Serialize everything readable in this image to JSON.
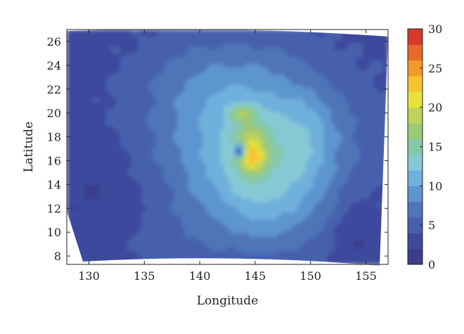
{
  "chart_data": {
    "type": "heatmap",
    "subtype": "filled-contour",
    "title": "",
    "xlabel": "Longitude",
    "ylabel": "Latitude",
    "xlim": [
      128,
      157
    ],
    "ylim": [
      7.3,
      27
    ],
    "x_ticks": [
      130,
      135,
      140,
      145,
      150,
      155
    ],
    "y_ticks": [
      8,
      10,
      12,
      14,
      16,
      18,
      20,
      22,
      24,
      26
    ],
    "colorbar": {
      "range": [
        0,
        30
      ],
      "ticks": [
        0,
        5,
        10,
        15,
        20,
        25,
        30
      ],
      "levels": [
        0,
        2,
        4,
        6,
        8,
        10,
        12,
        14,
        16,
        18,
        20,
        22,
        24,
        26,
        28,
        30
      ],
      "colors": [
        "#3a3e8c",
        "#3d4a9c",
        "#4660ad",
        "#4f74b8",
        "#5d95cf",
        "#6fb0dd",
        "#86c9d4",
        "#86c9a8",
        "#9ccb76",
        "#bfd25a",
        "#e6e23a",
        "#f5c430",
        "#f39b2a",
        "#e86a28",
        "#d63a2a"
      ]
    },
    "domain_edge": "curved map-projection boundary (wider at the bottom, narrower at the top)",
    "features": [
      {
        "name": "cyclone core",
        "center": [
          144.5,
          16.5
        ],
        "max_value": 24
      },
      {
        "name": "eye minimum",
        "center": [
          143.6,
          16.8
        ],
        "value": 3
      },
      {
        "name": "upper maximum",
        "center": [
          143.8,
          20.0
        ],
        "value": 19
      }
    ],
    "grid": false,
    "legend": "colorbar right"
  }
}
